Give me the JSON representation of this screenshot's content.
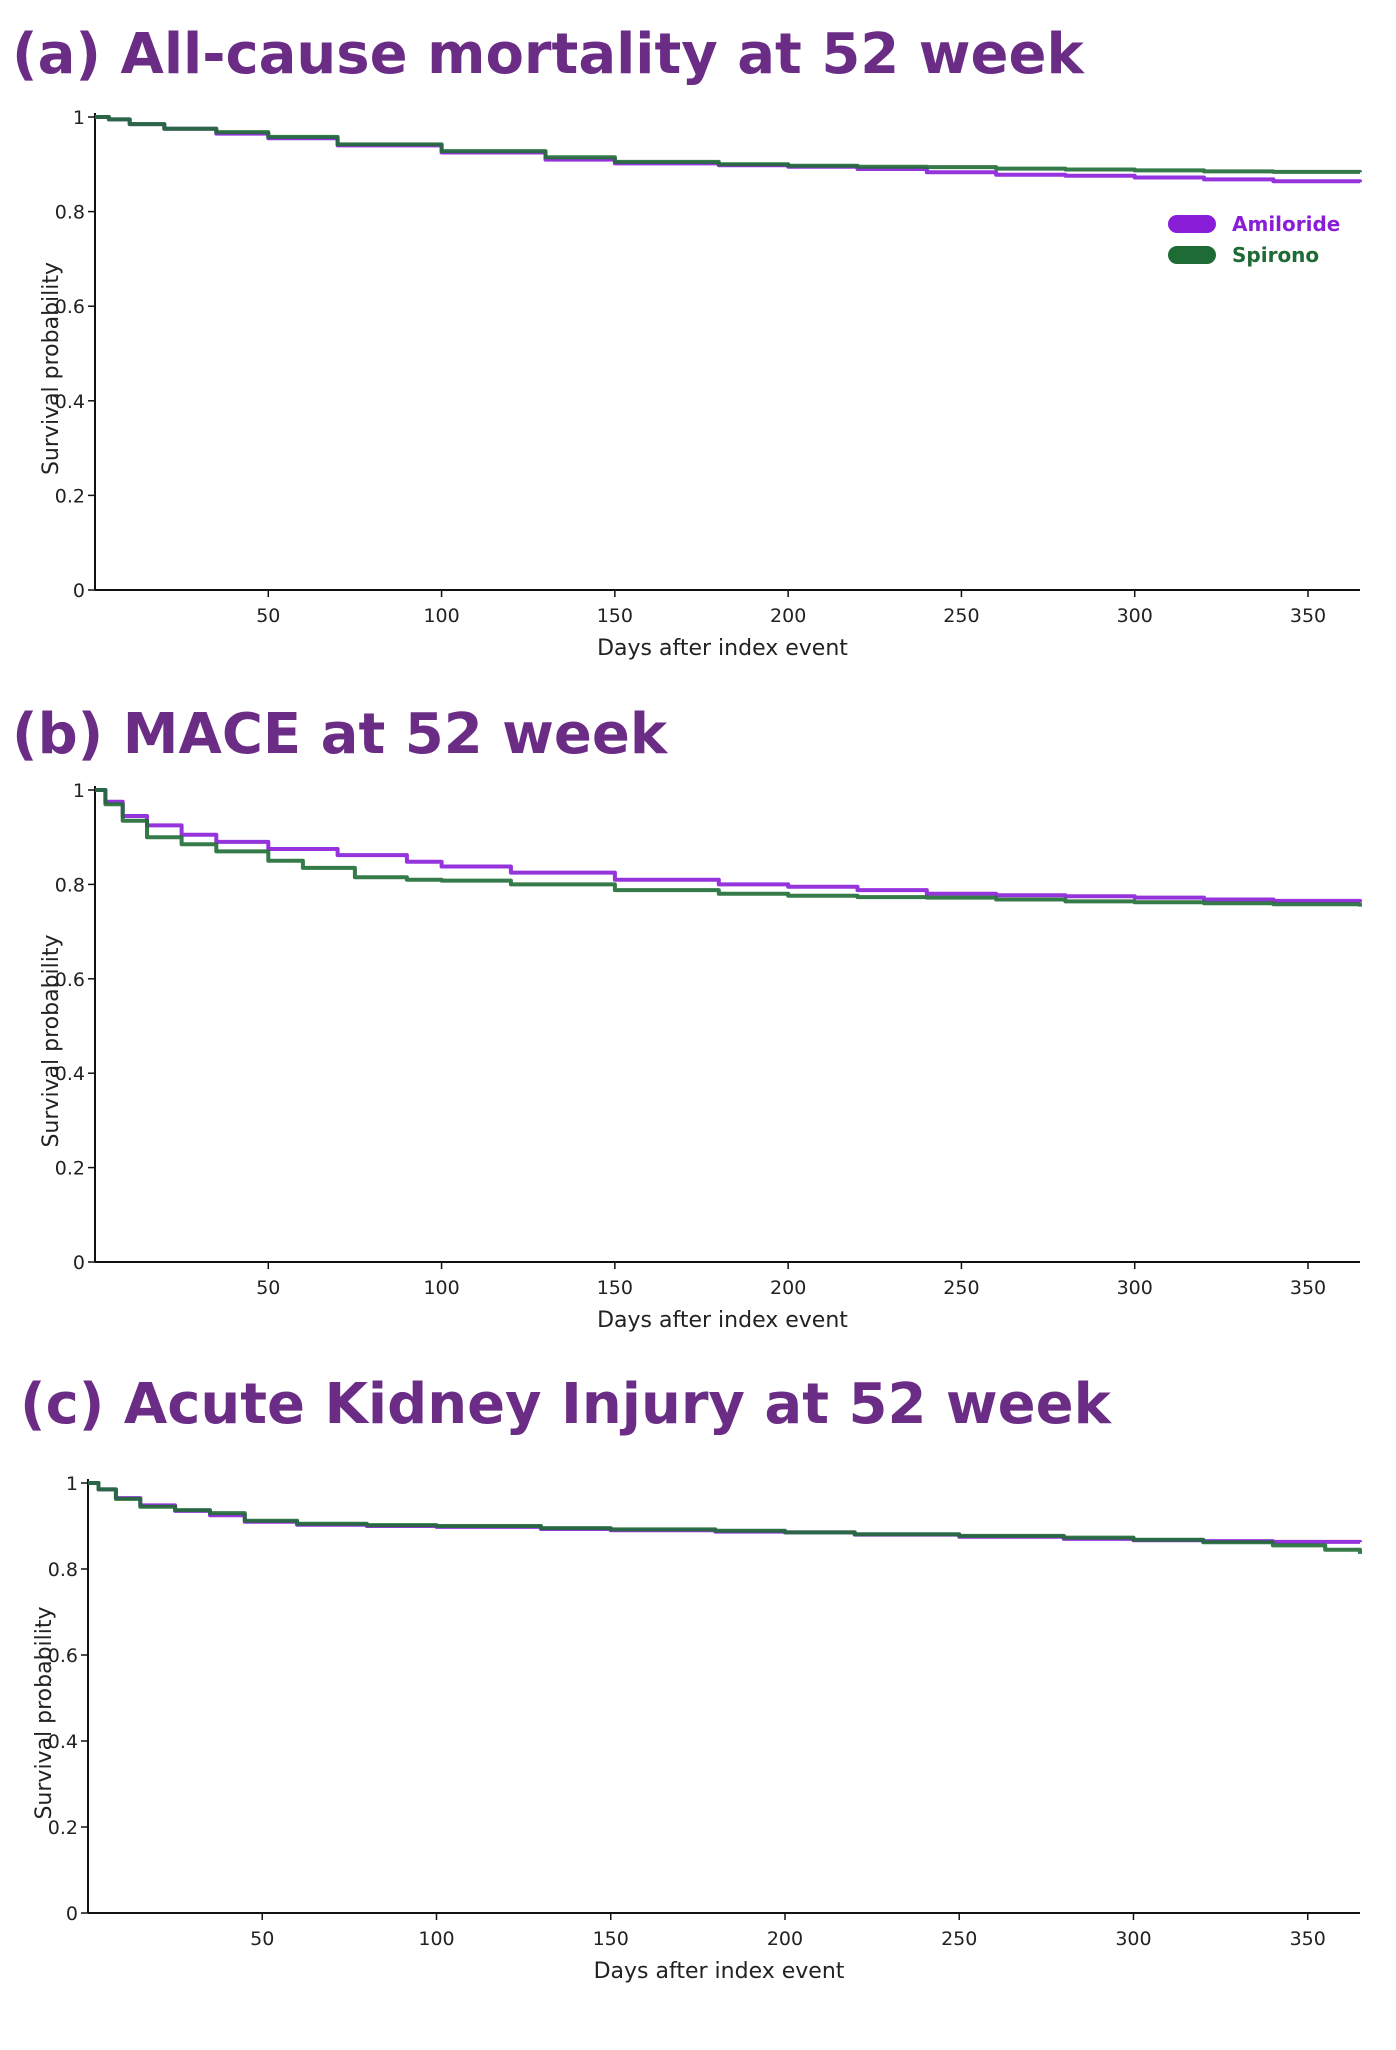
{
  "chart_data": [
    {
      "type": "line",
      "title": "(a) All-cause mortality at  52 week",
      "xlabel": "Days after index event",
      "ylabel": "Survival probability",
      "xlim": [
        0,
        365
      ],
      "ylim": [
        0,
        1
      ],
      "xticks": [
        50,
        100,
        150,
        200,
        250,
        300,
        350
      ],
      "xtick_labels": [
        "50",
        "100",
        "150",
        "200",
        "250",
        "300",
        "350"
      ],
      "yticks": [
        0,
        0.2,
        0.4,
        0.6,
        0.8,
        1
      ],
      "ytick_labels": [
        "0",
        "0.2",
        "0.4",
        "0.6",
        "0.8",
        "1"
      ],
      "legend": {
        "position": "top-right",
        "entries": [
          "Amiloride",
          "Spirono"
        ]
      },
      "series": [
        {
          "name": "Amiloride",
          "color": "#8a1ed8",
          "x": [
            0,
            4,
            10,
            20,
            35,
            50,
            70,
            100,
            130,
            150,
            180,
            200,
            220,
            240,
            260,
            280,
            300,
            320,
            340,
            365
          ],
          "y": [
            1.0,
            0.995,
            0.985,
            0.975,
            0.965,
            0.955,
            0.94,
            0.925,
            0.91,
            0.902,
            0.898,
            0.895,
            0.89,
            0.883,
            0.878,
            0.876,
            0.872,
            0.868,
            0.864,
            0.862
          ]
        },
        {
          "name": "Spirono",
          "color": "#1f6b35",
          "x": [
            0,
            4,
            10,
            20,
            35,
            50,
            70,
            100,
            130,
            150,
            180,
            200,
            220,
            240,
            260,
            280,
            300,
            320,
            340,
            365
          ],
          "y": [
            1.0,
            0.995,
            0.985,
            0.975,
            0.968,
            0.958,
            0.942,
            0.928,
            0.915,
            0.905,
            0.9,
            0.897,
            0.895,
            0.894,
            0.891,
            0.889,
            0.887,
            0.885,
            0.884,
            0.883
          ]
        }
      ]
    },
    {
      "type": "line",
      "title": "(b) MACE at 52 week",
      "xlabel": "Days after index event",
      "ylabel": "Survival probability",
      "xlim": [
        0,
        365
      ],
      "ylim": [
        0,
        1
      ],
      "xticks": [
        50,
        100,
        150,
        200,
        250,
        300,
        350
      ],
      "xtick_labels": [
        "50",
        "100",
        "150",
        "200",
        "250",
        "300",
        "350"
      ],
      "yticks": [
        0,
        0.2,
        0.4,
        0.6,
        0.8,
        1
      ],
      "ytick_labels": [
        "0",
        "0.2",
        "0.4",
        "0.6",
        "0.8",
        "1"
      ],
      "series": [
        {
          "name": "Amiloride",
          "color": "#8a1ed8",
          "x": [
            0,
            3,
            8,
            15,
            25,
            35,
            50,
            70,
            90,
            100,
            120,
            150,
            180,
            200,
            220,
            240,
            260,
            280,
            300,
            320,
            340,
            365
          ],
          "y": [
            1.0,
            0.975,
            0.945,
            0.925,
            0.905,
            0.89,
            0.875,
            0.862,
            0.848,
            0.838,
            0.825,
            0.81,
            0.8,
            0.795,
            0.788,
            0.78,
            0.777,
            0.775,
            0.772,
            0.768,
            0.765,
            0.762
          ]
        },
        {
          "name": "Spirono",
          "color": "#1f6b35",
          "x": [
            0,
            3,
            8,
            15,
            25,
            35,
            50,
            60,
            75,
            90,
            100,
            120,
            150,
            180,
            200,
            220,
            240,
            260,
            280,
            300,
            320,
            340,
            365
          ],
          "y": [
            1.0,
            0.97,
            0.935,
            0.9,
            0.885,
            0.87,
            0.85,
            0.835,
            0.815,
            0.81,
            0.808,
            0.8,
            0.788,
            0.78,
            0.776,
            0.773,
            0.772,
            0.768,
            0.764,
            0.762,
            0.76,
            0.758,
            0.753
          ]
        }
      ]
    },
    {
      "type": "line",
      "title": "(c) Acute Kidney Injury at 52 week",
      "xlabel": "Days after index event",
      "ylabel": "Survival probability",
      "xlim": [
        0,
        365
      ],
      "ylim": [
        0,
        1
      ],
      "xticks": [
        50,
        100,
        150,
        200,
        250,
        300,
        350
      ],
      "xtick_labels": [
        "50",
        "100",
        "150",
        "200",
        "250",
        "300",
        "350"
      ],
      "yticks": [
        0,
        0.2,
        0.4,
        0.6,
        0.8,
        1
      ],
      "ytick_labels": [
        "0",
        "0.2",
        "0.4",
        "0.6",
        "0.8",
        "1"
      ],
      "series": [
        {
          "name": "Amiloride",
          "color": "#8a1ed8",
          "x": [
            0,
            3,
            8,
            15,
            25,
            35,
            45,
            60,
            80,
            100,
            130,
            150,
            180,
            200,
            220,
            250,
            280,
            300,
            320,
            340,
            365
          ],
          "y": [
            1.0,
            0.985,
            0.965,
            0.948,
            0.935,
            0.925,
            0.91,
            0.903,
            0.9,
            0.898,
            0.893,
            0.89,
            0.887,
            0.885,
            0.88,
            0.875,
            0.87,
            0.867,
            0.865,
            0.863,
            0.862
          ]
        },
        {
          "name": "Spirono",
          "color": "#1f6b35",
          "x": [
            0,
            3,
            8,
            15,
            25,
            35,
            45,
            60,
            80,
            100,
            130,
            150,
            180,
            200,
            220,
            250,
            280,
            300,
            320,
            340,
            355,
            365
          ],
          "y": [
            1.0,
            0.985,
            0.963,
            0.945,
            0.937,
            0.93,
            0.912,
            0.905,
            0.902,
            0.9,
            0.895,
            0.892,
            0.889,
            0.885,
            0.881,
            0.877,
            0.873,
            0.868,
            0.862,
            0.855,
            0.845,
            0.835
          ]
        }
      ]
    }
  ]
}
